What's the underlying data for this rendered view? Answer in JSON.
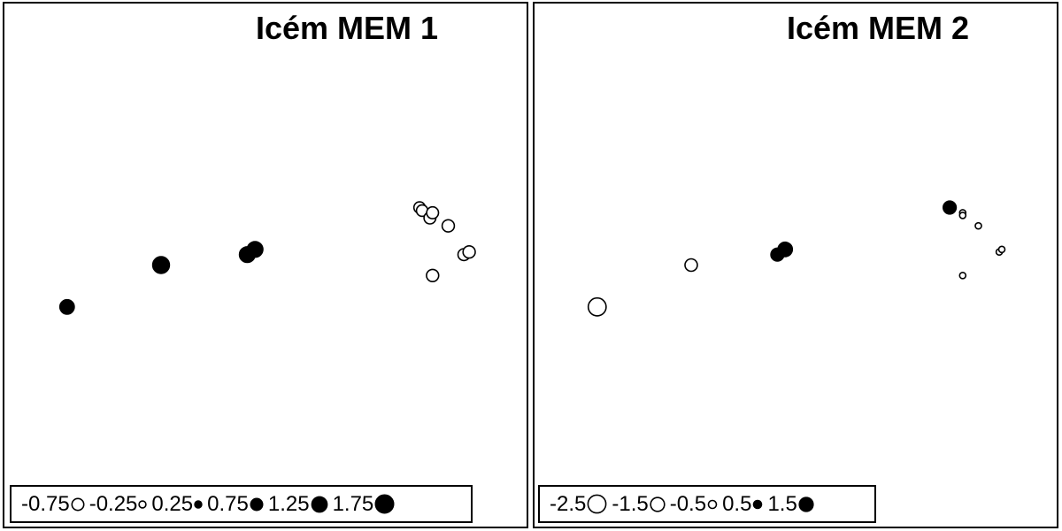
{
  "chart_data": [
    {
      "type": "scatter",
      "title": "Icém MEM 1",
      "xlabel": "",
      "ylabel": "",
      "encoding": "bubble: radius proportional to |value|, filled = positive, hollow = negative",
      "legend": {
        "placement": "bottom-left",
        "entries": [
          {
            "label": "-0.75",
            "value": -0.75
          },
          {
            "label": "-0.25",
            "value": -0.25
          },
          {
            "label": "0.25",
            "value": 0.25
          },
          {
            "label": "0.75",
            "value": 0.75
          },
          {
            "label": "1.25",
            "value": 1.25
          },
          {
            "label": "1.75",
            "value": 1.75
          }
        ]
      },
      "points": [
        {
          "x": 0.12,
          "y": 0.58,
          "value": 1.1
        },
        {
          "x": 0.3,
          "y": 0.5,
          "value": 1.5
        },
        {
          "x": 0.465,
          "y": 0.48,
          "value": 1.3
        },
        {
          "x": 0.48,
          "y": 0.47,
          "value": 1.3
        },
        {
          "x": 0.795,
          "y": 0.39,
          "value": -0.7
        },
        {
          "x": 0.8,
          "y": 0.396,
          "value": -0.7
        },
        {
          "x": 0.815,
          "y": 0.41,
          "value": -0.75
        },
        {
          "x": 0.82,
          "y": 0.4,
          "value": -0.75
        },
        {
          "x": 0.85,
          "y": 0.425,
          "value": -0.8
        },
        {
          "x": 0.88,
          "y": 0.48,
          "value": -0.75
        },
        {
          "x": 0.89,
          "y": 0.475,
          "value": -0.8
        },
        {
          "x": 0.82,
          "y": 0.52,
          "value": -0.8
        }
      ]
    },
    {
      "type": "scatter",
      "title": "Icém MEM 2",
      "xlabel": "",
      "ylabel": "",
      "encoding": "bubble: radius proportional to |value|, filled = positive, hollow = negative",
      "legend": {
        "placement": "bottom-left",
        "entries": [
          {
            "label": "-2.5",
            "value": -2.5
          },
          {
            "label": "-1.5",
            "value": -1.5
          },
          {
            "label": "-0.5",
            "value": -0.5
          },
          {
            "label": "0.5",
            "value": 0.5
          },
          {
            "label": "1.5",
            "value": 1.5
          }
        ]
      },
      "points": [
        {
          "x": 0.12,
          "y": 0.58,
          "value": -2.5
        },
        {
          "x": 0.3,
          "y": 0.5,
          "value": -1.2
        },
        {
          "x": 0.465,
          "y": 0.48,
          "value": 1.3
        },
        {
          "x": 0.48,
          "y": 0.47,
          "value": 1.6
        },
        {
          "x": 0.795,
          "y": 0.39,
          "value": 1.3
        },
        {
          "x": 0.82,
          "y": 0.4,
          "value": -0.3
        },
        {
          "x": 0.82,
          "y": 0.405,
          "value": -0.3
        },
        {
          "x": 0.85,
          "y": 0.425,
          "value": -0.3
        },
        {
          "x": 0.89,
          "y": 0.475,
          "value": -0.3
        },
        {
          "x": 0.895,
          "y": 0.47,
          "value": -0.3
        },
        {
          "x": 0.82,
          "y": 0.52,
          "value": -0.3
        }
      ]
    }
  ]
}
